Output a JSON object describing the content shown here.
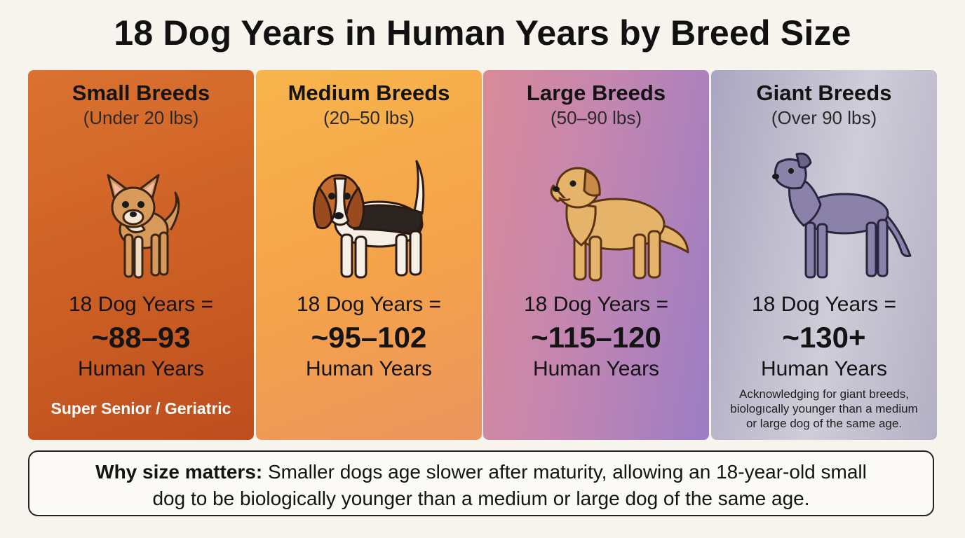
{
  "title": "18 Dog Years in Human Years by Breed Size",
  "cards": [
    {
      "name": "Small Breeds",
      "weight": "(Under 20 lbs)",
      "equation": "18 Dog Years =",
      "value": "~88–93",
      "unit": "Human Years",
      "tag": "Super Senior / Geriatric",
      "dog_icon": "chihuahua-icon"
    },
    {
      "name": "Medium Breeds",
      "weight": "(20–50 lbs)",
      "equation": "18 Dog Years =",
      "value": "~95–102",
      "unit": "Human Years",
      "dog_icon": "beagle-icon"
    },
    {
      "name": "Large Breeds",
      "weight": "(50–90 lbs)",
      "equation": "18 Dog Years =",
      "value": "~115–120",
      "unit": "Human Years",
      "dog_icon": "golden-retriever-icon"
    },
    {
      "name": "Giant Breeds",
      "weight": "(Over 90 lbs)",
      "equation": "18 Dog Years =",
      "value": "~130+",
      "unit": "Human Years",
      "note_lines": [
        "Acknowledging for giant breeds,",
        "biologıcally younger than a medium",
        "or large dog of the same age."
      ],
      "dog_icon": "great-dane-icon"
    }
  ],
  "why": {
    "label": "Why size matters:",
    "line1_rest": " Smaller dogs age slower after maturity, allowing an 18-year-old small",
    "line2": "dog to be biologically younger than a medium or large dog of the same age."
  },
  "colors": {
    "small": "#cc5f24",
    "medium": "#f4a24a",
    "large": "#c486b0",
    "giant": "#cfcdd8"
  }
}
